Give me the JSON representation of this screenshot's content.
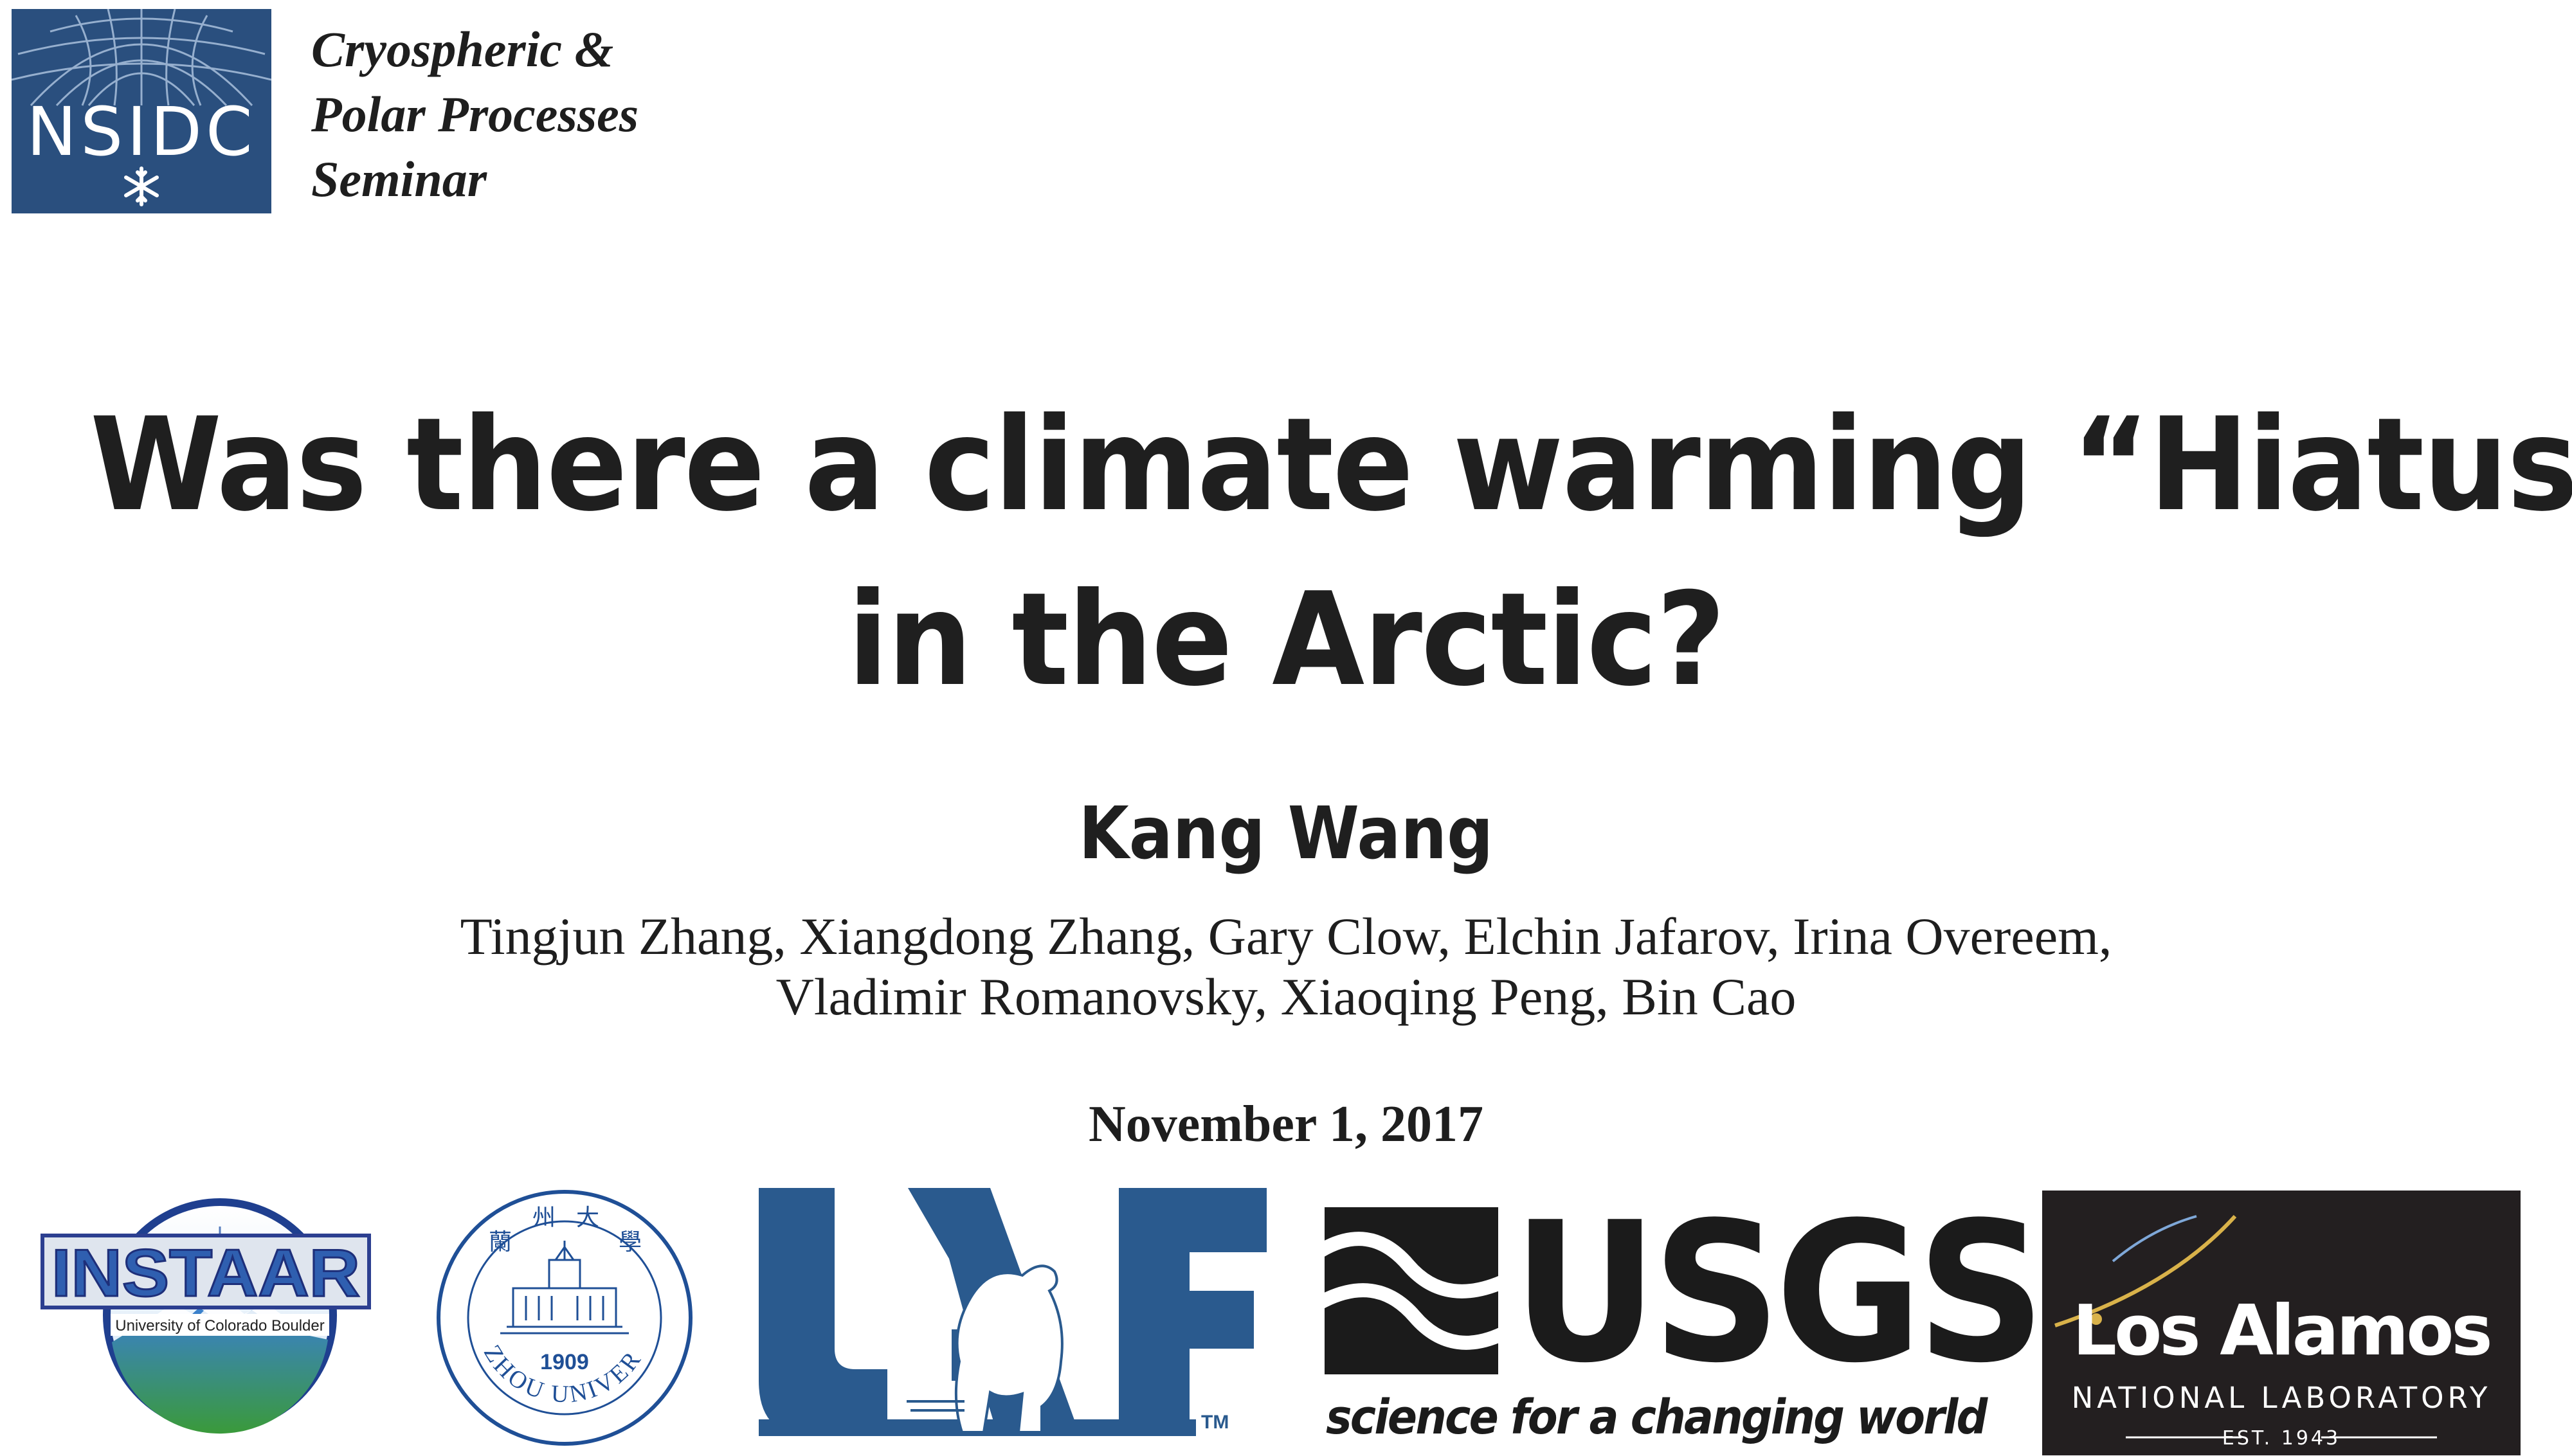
{
  "header": {
    "logo_text": "NSIDC",
    "seminar_lines": [
      "Cryospheric &",
      "Polar Processes",
      "Seminar"
    ]
  },
  "title_lines": [
    "Was there a climate warming “Hiatus”",
    "in the Arctic?"
  ],
  "presenter": "Kang Wang",
  "coauthor_lines": [
    "Tingjun Zhang, Xiangdong Zhang, Gary Clow, Elchin Jafarov, Irina Overeem,",
    "Vladimir Romanovsky, Xiaoqing Peng, Bin Cao"
  ],
  "date": "November 1, 2017",
  "logos": {
    "instaar": {
      "name": "INSTAAR",
      "subtitle": "University of Colorado Boulder"
    },
    "lanzhou": {
      "name": "LANZHOU UNIVERSITY",
      "year": "1909"
    },
    "uaf": {
      "name": "UAF",
      "tm": "TM"
    },
    "usgs": {
      "name": "USGS",
      "tagline": "science for a changing world"
    },
    "lanl": {
      "name": "Los Alamos",
      "subtitle": "NATIONAL LABORATORY",
      "est": "EST. 1943"
    }
  },
  "colors": {
    "nsidc_blue": "#2a4f7e",
    "uaf_blue": "#2a5a8e",
    "instaar_blue": "#2f5fb0",
    "lanl_bg": "#231f20",
    "text": "#1e1e1e"
  }
}
